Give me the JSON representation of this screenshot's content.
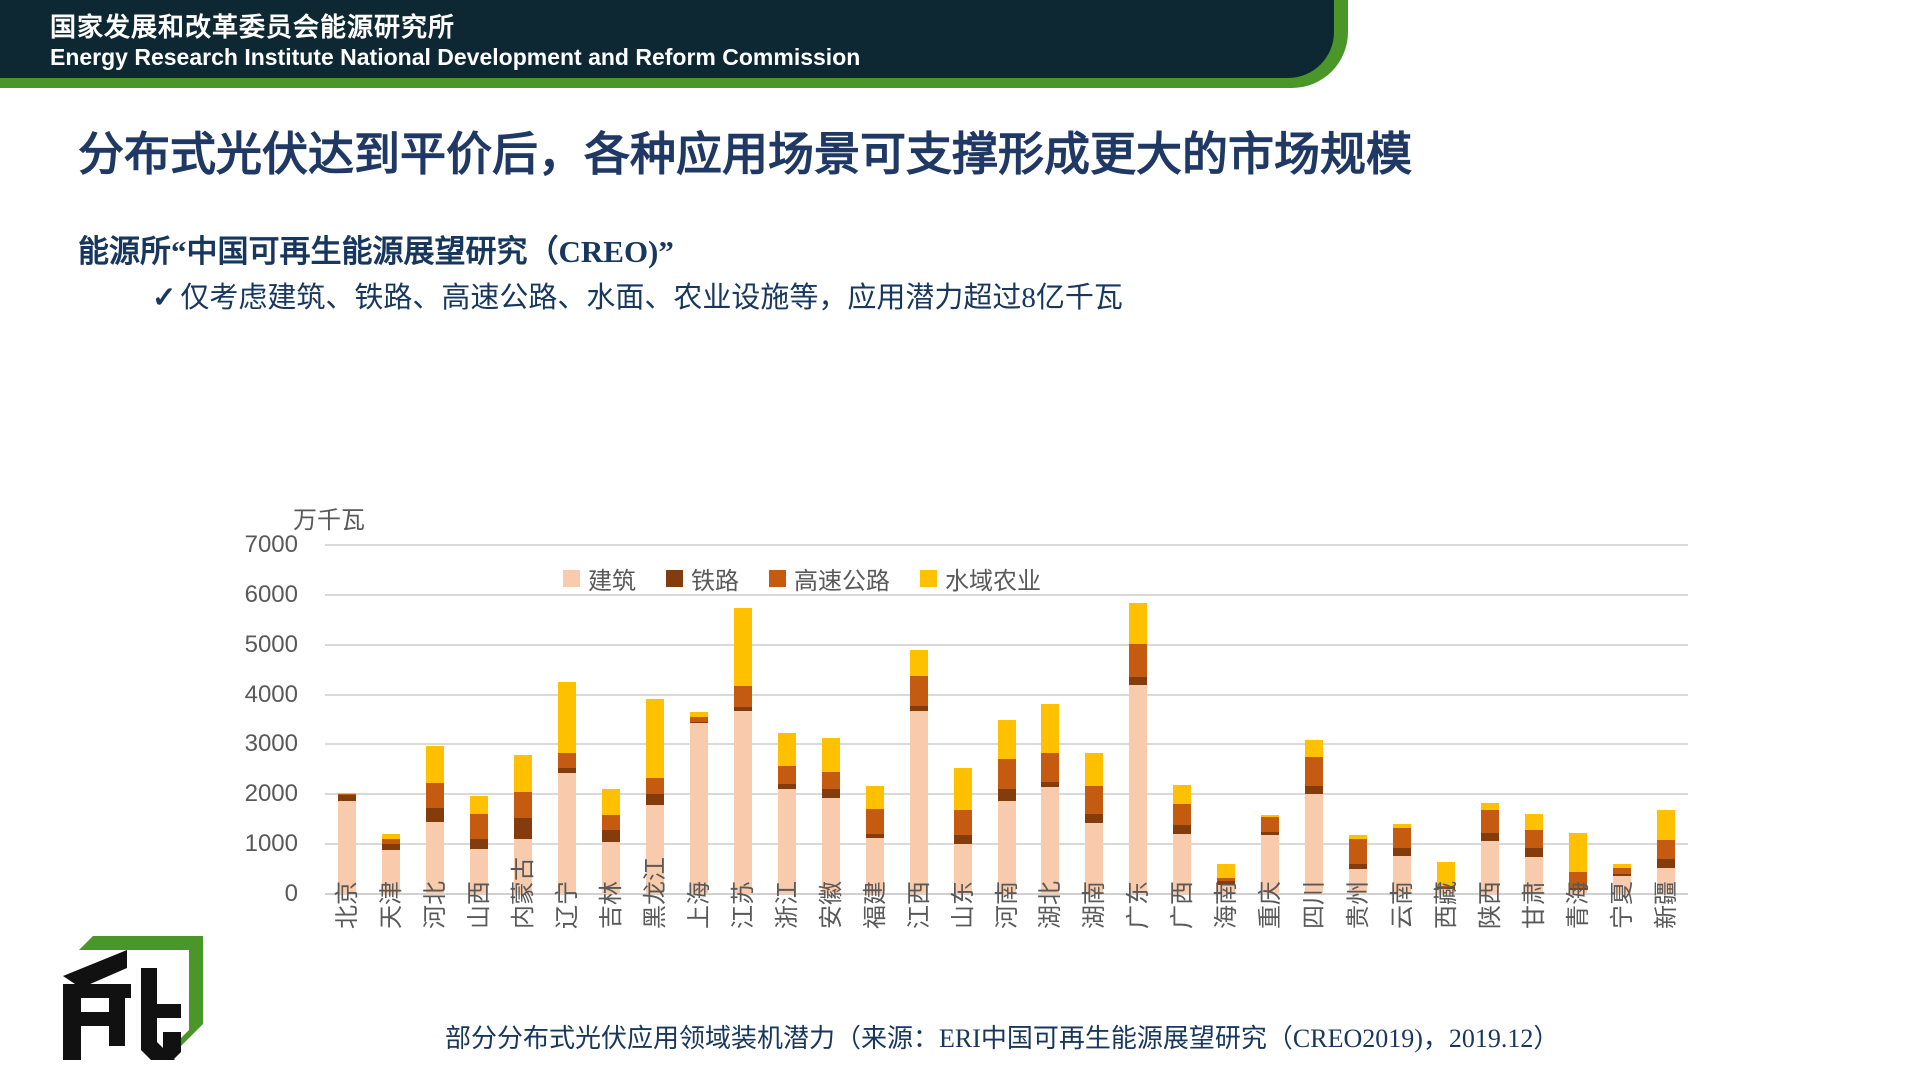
{
  "header": {
    "org_cn": "国家发展和改革委员会能源研究所",
    "org_en": "Energy Research Institute National Development and Reform Commission"
  },
  "title": "分布式光伏达到平价后，各种应用场景可支撑形成更大的市场规模",
  "subtitle": "能源所“中国可再生能源展望研究（CREO)”",
  "bullet_marker": "✓",
  "bullet": "仅考虑建筑、铁路、高速公路、水面、农业设施等，应用潜力超过8亿千瓦",
  "caption": "部分分布式光伏应用领域装机潜力（来源：ERI中国可再生能源展望研究（CREO2019)，2019.12）",
  "colors": {
    "header_dark": "#0d2833",
    "header_green": "#4a9629",
    "title_navy": "#1f3864",
    "text_navy": "#17375e",
    "axis_gray": "#595959",
    "gridline": "#d9d9d9"
  },
  "chart_data": {
    "type": "bar",
    "stacked": true,
    "ylabel": "万千瓦",
    "ylim": [
      0,
      7000
    ],
    "yticks": [
      7000,
      6000,
      5000,
      4000,
      3000,
      2000,
      1000,
      0
    ],
    "grid": true,
    "legend_position": "top-center",
    "categories": [
      "北京",
      "天津",
      "河北",
      "山西",
      "内蒙古",
      "辽宁",
      "吉林",
      "黑龙江",
      "上海",
      "江苏",
      "浙江",
      "安徽",
      "福建",
      "江西",
      "山东",
      "河南",
      "湖北",
      "湖南",
      "广东",
      "广西",
      "海南",
      "重庆",
      "四川",
      "贵州",
      "云南",
      "西藏",
      "陕西",
      "甘肃",
      "青海",
      "宁夏",
      "新疆"
    ],
    "series": [
      {
        "name": "建筑",
        "color": "#f8cbad",
        "values": [
          1870,
          880,
          1450,
          900,
          1100,
          2420,
          1050,
          1780,
          3430,
          3680,
          2100,
          1930,
          1130,
          3680,
          1000,
          1870,
          2140,
          1430,
          4200,
          1210,
          180,
          1190,
          2000,
          500,
          760,
          110,
          1060,
          740,
          80,
          360,
          530
        ]
      },
      {
        "name": "铁路",
        "color": "#843c0c",
        "values": [
          110,
          120,
          270,
          200,
          430,
          100,
          230,
          220,
          30,
          80,
          100,
          170,
          80,
          100,
          190,
          230,
          100,
          180,
          150,
          180,
          80,
          50,
          170,
          100,
          170,
          30,
          170,
          180,
          50,
          50,
          170
        ]
      },
      {
        "name": "高速公路",
        "color": "#c55a11",
        "values": [
          30,
          100,
          510,
          500,
          520,
          300,
          310,
          320,
          90,
          420,
          370,
          350,
          490,
          590,
          490,
          600,
          580,
          560,
          670,
          420,
          70,
          300,
          570,
          500,
          400,
          30,
          450,
          360,
          320,
          120,
          380
        ]
      },
      {
        "name": "水域农业",
        "color": "#ffc000",
        "values": [
          20,
          100,
          740,
          370,
          730,
          1430,
          510,
          1590,
          110,
          1560,
          660,
          670,
          470,
          530,
          840,
          800,
          990,
          650,
          820,
          370,
          270,
          50,
          350,
          90,
          80,
          480,
          150,
          320,
          780,
          70,
          600
        ]
      }
    ]
  }
}
